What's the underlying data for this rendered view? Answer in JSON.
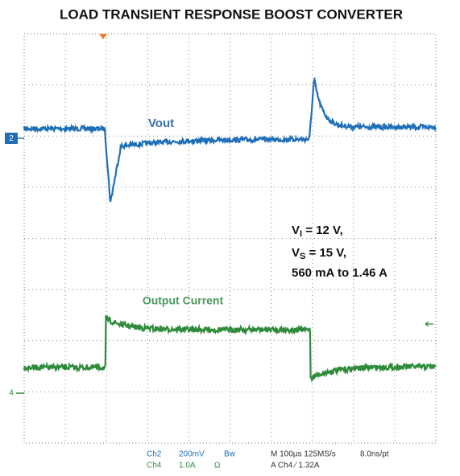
{
  "title": "LOAD TRANSIENT RESPONSE BOOST CONVERTER",
  "traces": {
    "vout": "Vout",
    "current": "Output Current"
  },
  "channel_markers": [
    "2",
    "4"
  ],
  "annotation": [
    {
      "main": "V",
      "sub": "I",
      "rest": " = 12 V,"
    },
    {
      "main": "V",
      "sub": "S",
      "rest": " = 15 V,"
    },
    {
      "main": "560 mA to 1.46 A"
    }
  ],
  "readout": {
    "ch2": {
      "name": "Ch2",
      "scale": "200mV",
      "flag": "Bw"
    },
    "ch4": {
      "name": "Ch4",
      "scale": "1.0A",
      "flag": "Ω"
    },
    "timebase": "M 100µs 125MS/s",
    "resolution": "8.0ns/pt",
    "trigger": "A Ch4 ⁄ 1.32A"
  }
}
